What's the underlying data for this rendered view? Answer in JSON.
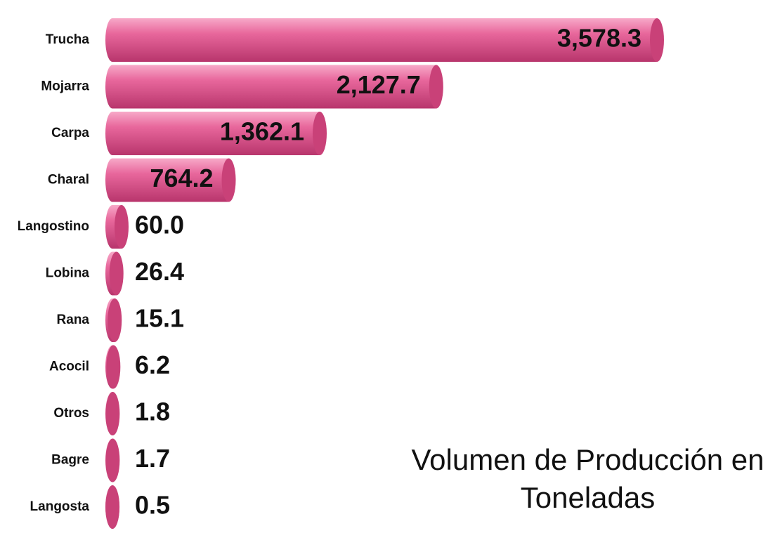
{
  "chart_data": {
    "type": "bar",
    "orientation": "horizontal",
    "title": "Volumen de Producción en Toneladas",
    "categories": [
      "Trucha",
      "Mojarra",
      "Carpa",
      "Charal",
      "Langostino",
      "Lobina",
      "Rana",
      "Acocil",
      "Otros",
      "Bagre",
      "Langosta"
    ],
    "values": [
      3578.3,
      2127.7,
      1362.1,
      764.2,
      60.0,
      26.4,
      15.1,
      6.2,
      1.8,
      1.7,
      0.5
    ],
    "value_labels": [
      "3,578.3",
      "2,127.7",
      "1,362.1",
      "764.2",
      "60.0",
      "26.4",
      "15.1",
      "6.2",
      "1.8",
      "1.7",
      "0.5"
    ],
    "color": "#e2568f"
  }
}
